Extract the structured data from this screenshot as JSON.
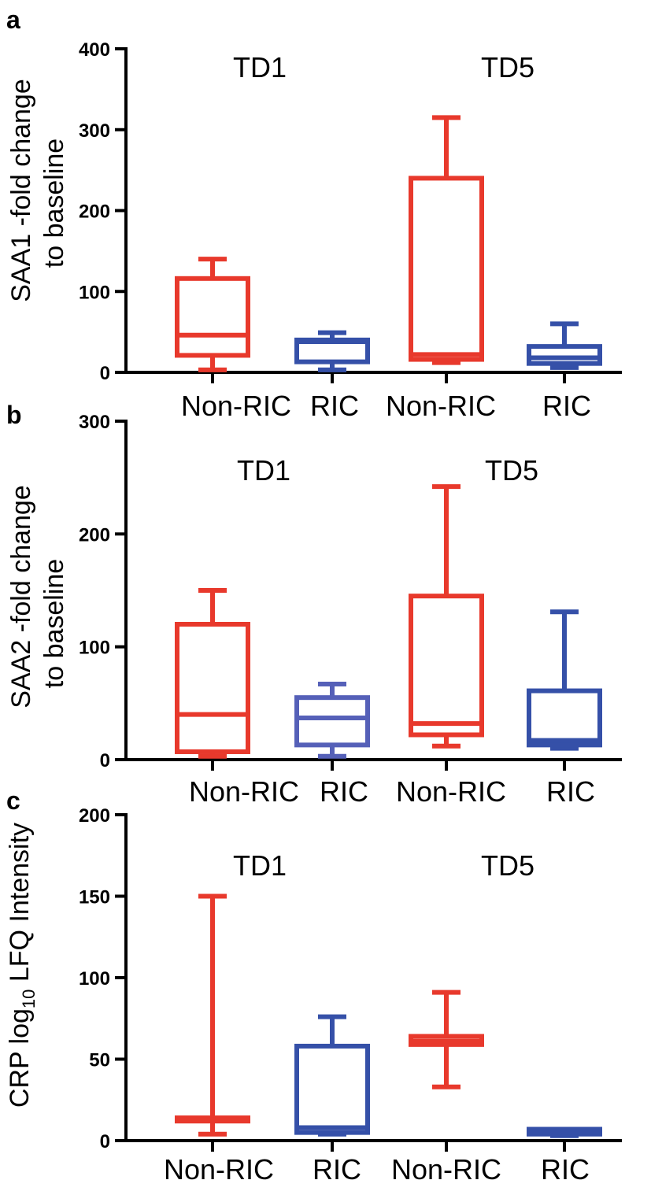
{
  "chart_data": [
    {
      "type": "box",
      "panel": "a",
      "ylabel_lines": [
        "SAA1 -fold change",
        "to baseline"
      ],
      "ylim": [
        0,
        400
      ],
      "yticks": [
        "0",
        "100",
        "200",
        "300",
        "400"
      ],
      "categories": [
        "Non-RIC",
        "RIC",
        "Non-RIC",
        "RIC"
      ],
      "group_labels": [
        "TD1",
        "TD5"
      ],
      "series": [
        {
          "name": "Non-RIC TD1",
          "color": "#e8392c",
          "min": 3,
          "q1": 21,
          "median": 46,
          "q3": 116,
          "max": 140
        },
        {
          "name": "RIC TD1",
          "color": "#3550a8",
          "min": 3,
          "q1": 13,
          "median": 38,
          "q3": 40,
          "max": 49
        },
        {
          "name": "Non-RIC TD5",
          "color": "#e8392c",
          "min": 12,
          "q1": 16,
          "median": 22,
          "q3": 240,
          "max": 315
        },
        {
          "name": "RIC TD5",
          "color": "#3550a8",
          "min": 6,
          "q1": 11,
          "median": 18,
          "q3": 32,
          "max": 60
        }
      ]
    },
    {
      "type": "box",
      "panel": "b",
      "ylabel_lines": [
        "SAA2 -fold change",
        "to baseline"
      ],
      "ylim": [
        0,
        300
      ],
      "yticks": [
        "0",
        "100",
        "200",
        "300"
      ],
      "categories": [
        "Non-RIC",
        "RIC",
        "Non-RIC",
        "RIC"
      ],
      "group_labels": [
        "TD1",
        "TD5"
      ],
      "series": [
        {
          "name": "Non-RIC TD1",
          "color": "#e8392c",
          "min": 3,
          "q1": 7,
          "median": 40,
          "q3": 120,
          "max": 150
        },
        {
          "name": "RIC TD1",
          "color": "#5560b8",
          "min": 3,
          "q1": 13,
          "median": 37,
          "q3": 55,
          "max": 67
        },
        {
          "name": "Non-RIC TD5",
          "color": "#e8392c",
          "min": 12,
          "q1": 22,
          "median": 32,
          "q3": 145,
          "max": 242
        },
        {
          "name": "RIC TD5",
          "color": "#3550a8",
          "min": 10,
          "q1": 13,
          "median": 17,
          "q3": 61,
          "max": 131
        }
      ]
    },
    {
      "type": "box",
      "panel": "c",
      "ylabel_prefix": "CRP log",
      "ylabel_sub": "10",
      "ylabel_suffix": " LFQ Intensity",
      "ylim": [
        0,
        200
      ],
      "yticks": [
        "0",
        "50",
        "100",
        "150",
        "200"
      ],
      "categories": [
        "Non-RIC",
        "RIC",
        "Non-RIC",
        "RIC"
      ],
      "group_labels": [
        "TD1",
        "TD5"
      ],
      "series": [
        {
          "name": "Non-RIC TD1",
          "color": "#e8392c",
          "min": 4,
          "q1": 12,
          "median": 13,
          "q3": 14,
          "max": 150
        },
        {
          "name": "RIC TD1",
          "color": "#3550a8",
          "min": 4,
          "q1": 5,
          "median": 8,
          "q3": 58,
          "max": 76
        },
        {
          "name": "Non-RIC TD5",
          "color": "#e8392c",
          "min": 33,
          "q1": 59,
          "median": 61,
          "q3": 64,
          "max": 91
        },
        {
          "name": "RIC TD5",
          "color": "#3550a8",
          "min": 3,
          "q1": 4,
          "median": 5,
          "q3": 7,
          "max": 7
        }
      ]
    }
  ]
}
